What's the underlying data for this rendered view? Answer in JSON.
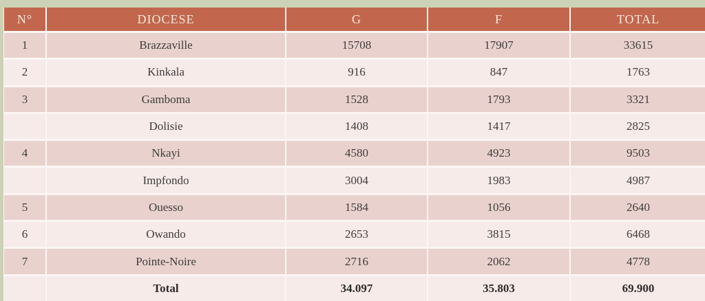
{
  "colors": {
    "slide_background": "#cbd2b5",
    "header_background": "#c2674d",
    "header_text": "#f2e9df",
    "row_band_dark": "#e9d2ce",
    "row_band_light": "#f6ebe9",
    "separator": "#fbf6f4",
    "body_text": "#3f3c3c"
  },
  "table": {
    "columns": [
      "N°",
      "DIOCESE",
      "G",
      "F",
      "TOTAL"
    ],
    "rows": [
      {
        "no": "1",
        "diocese": "Brazzaville",
        "g": "15708",
        "f": "17907",
        "total": "33615"
      },
      {
        "no": "2",
        "diocese": "Kinkala",
        "g": "916",
        "f": "847",
        "total": "1763"
      },
      {
        "no": "3",
        "diocese": "Gamboma",
        "g": "1528",
        "f": "1793",
        "total": "3321"
      },
      {
        "no": "",
        "diocese": "Dolisie",
        "g": "1408",
        "f": "1417",
        "total": "2825"
      },
      {
        "no": "4",
        "diocese": "Nkayi",
        "g": "4580",
        "f": "4923",
        "total": "9503"
      },
      {
        "no": "",
        "diocese": "Impfondo",
        "g": "3004",
        "f": "1983",
        "total": "4987"
      },
      {
        "no": "5",
        "diocese": "Ouesso",
        "g": "1584",
        "f": "1056",
        "total": "2640"
      },
      {
        "no": "6",
        "diocese": "Owando",
        "g": "2653",
        "f": "3815",
        "total": "6468"
      },
      {
        "no": "7",
        "diocese": "Pointe-Noire",
        "g": "2716",
        "f": "2062",
        "total": "4778"
      }
    ],
    "total_row": {
      "no": "",
      "label": "Total",
      "g": "34.097",
      "f": "35.803",
      "total": "69.900"
    }
  },
  "chart_data": {
    "type": "table",
    "title": "",
    "columns": [
      "N°",
      "DIOCESE",
      "G",
      "F",
      "TOTAL"
    ],
    "rows": [
      [
        "1",
        "Brazzaville",
        15708,
        17907,
        33615
      ],
      [
        "2",
        "Kinkala",
        916,
        847,
        1763
      ],
      [
        "3",
        "Gamboma",
        1528,
        1793,
        3321
      ],
      [
        "",
        "Dolisie",
        1408,
        1417,
        2825
      ],
      [
        "4",
        "Nkayi",
        4580,
        4923,
        9503
      ],
      [
        "",
        "Impfondo",
        3004,
        1983,
        4987
      ],
      [
        "5",
        "Ouesso",
        1584,
        1056,
        2640
      ],
      [
        "6",
        "Owando",
        2653,
        3815,
        6468
      ],
      [
        "7",
        "Pointe-Noire",
        2716,
        2062,
        4778
      ],
      [
        "",
        "Total",
        "34.097",
        "35.803",
        "69.900"
      ]
    ]
  }
}
